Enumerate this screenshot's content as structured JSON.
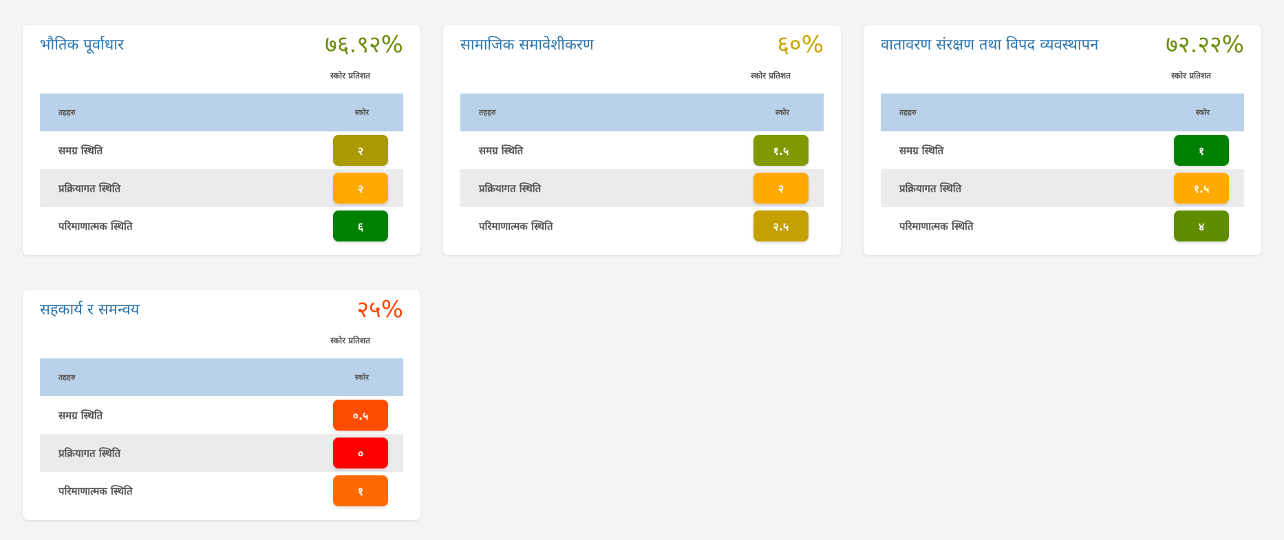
{
  "table_headers": {
    "layer": "तहहरु",
    "score": "स्कोर"
  },
  "score_percent_label": "स्कोर प्रतिशत",
  "cards": [
    {
      "title": "भौतिक पूर्वाधार",
      "percent": "७६.९२%",
      "percent_color": "#6b8e0a",
      "rows": [
        {
          "label": "समग्र स्थिति",
          "score": "२",
          "color": "#aa9900"
        },
        {
          "label": "प्रक्रियागत स्थिति",
          "score": "२",
          "color": "#ffaa00"
        },
        {
          "label": "परिमाणात्मक स्थिति",
          "score": "६",
          "color": "#008000"
        }
      ]
    },
    {
      "title": "सामाजिक समावेशीकरण",
      "percent": "६०%",
      "percent_color": "#c9a400",
      "rows": [
        {
          "label": "समग्र स्थिति",
          "score": "१.५",
          "color": "#7f9a00"
        },
        {
          "label": "प्रक्रियागत स्थिति",
          "score": "२",
          "color": "#ffaa00"
        },
        {
          "label": "परिमाणात्मक स्थिति",
          "score": "२.५",
          "color": "#c4a000"
        }
      ]
    },
    {
      "title": "वातावरण संरक्षण तथा विपद व्यवस्थापन",
      "percent": "७२.२२%",
      "percent_color": "#6b8e0a",
      "rows": [
        {
          "label": "समग्र स्थिति",
          "score": "१",
          "color": "#008000"
        },
        {
          "label": "प्रक्रियागत स्थिति",
          "score": "१.५",
          "color": "#ffaa00"
        },
        {
          "label": "परिमाणात्मक स्थिति",
          "score": "४",
          "color": "#5f8c00"
        }
      ]
    },
    {
      "title": "सहकार्य र समन्वय",
      "percent": "२५%",
      "percent_color": "#ff4500",
      "rows": [
        {
          "label": "समग्र स्थिति",
          "score": "०.५",
          "color": "#ff4d00"
        },
        {
          "label": "प्रक्रियागत स्थिति",
          "score": "०",
          "color": "#ff0000"
        },
        {
          "label": "परिमाणात्मक स्थिति",
          "score": "१",
          "color": "#ff6a00"
        }
      ]
    }
  ]
}
